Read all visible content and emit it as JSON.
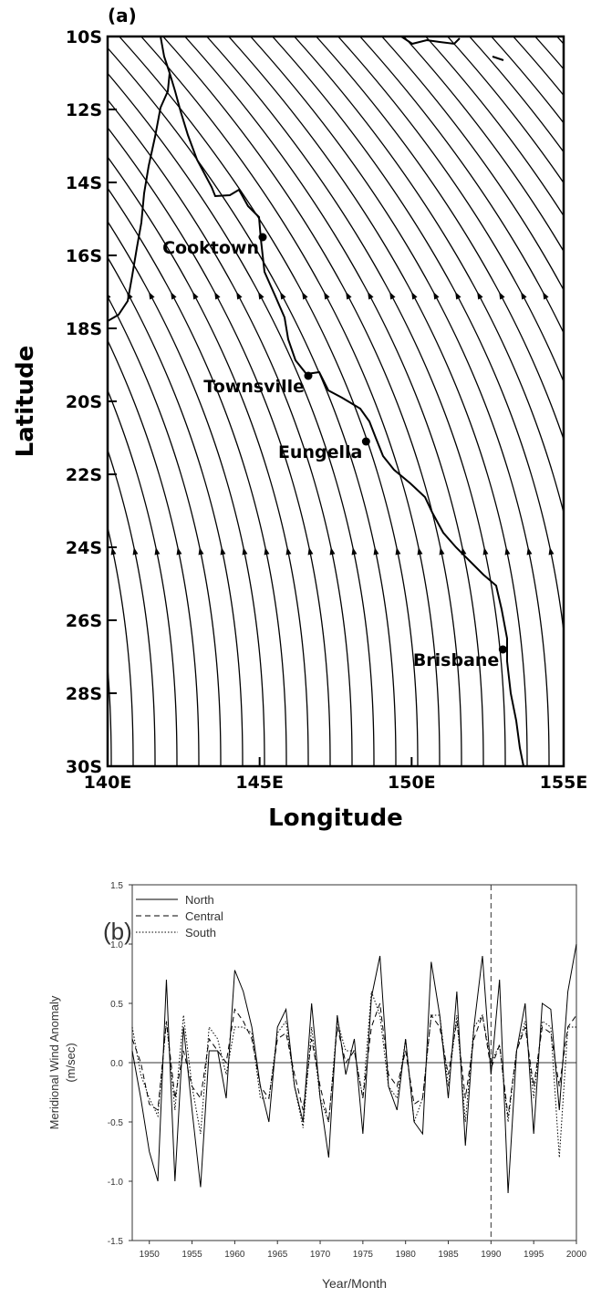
{
  "chart_data": [
    {
      "type": "map",
      "title": "(a)",
      "xlabel": "Longitude",
      "ylabel": "Latitude",
      "xlim": [
        140,
        155
      ],
      "ylim": [
        -30,
        -10
      ],
      "xticks": [
        {
          "value": 140,
          "label": "140E"
        },
        {
          "value": 145,
          "label": "145E"
        },
        {
          "value": 150,
          "label": "150E"
        },
        {
          "value": 155,
          "label": "155E"
        }
      ],
      "yticks": [
        {
          "value": -10,
          "label": "10S"
        },
        {
          "value": -12,
          "label": "12S"
        },
        {
          "value": -14,
          "label": "14S"
        },
        {
          "value": -16,
          "label": "16S"
        },
        {
          "value": -18,
          "label": "18S"
        },
        {
          "value": -20,
          "label": "20S"
        },
        {
          "value": -22,
          "label": "22S"
        },
        {
          "value": -24,
          "label": "24S"
        },
        {
          "value": -26,
          "label": "26S"
        },
        {
          "value": -28,
          "label": "28S"
        },
        {
          "value": -30,
          "label": "30S"
        }
      ],
      "names": [
        "Cooktown",
        "Townsville",
        "Eungella",
        "Brisbane"
      ],
      "x": [
        145.1,
        146.6,
        148.5,
        153.0
      ],
      "y": [
        -15.5,
        -19.3,
        -21.1,
        -26.8
      ],
      "color": "#000000"
    },
    {
      "type": "line",
      "title": "(b)",
      "xlabel": "Year/Month",
      "ylabel": [
        "Meridional Wind Anomaly",
        "(m/sec)"
      ],
      "xlim": [
        1948,
        2000
      ],
      "ylim": [
        -1.5,
        1.5
      ],
      "xticks": [
        1950,
        1955,
        1960,
        1965,
        1970,
        1975,
        1980,
        1985,
        1990,
        1995,
        2000
      ],
      "yticks": [
        1.5,
        {
          "value": 1,
          "label": "1.0"
        },
        0.5,
        {
          "value": 0,
          "label": "0.0"
        },
        -0.5,
        {
          "value": -1,
          "label": "-1.0"
        },
        -1.5
      ],
      "vline": 1990,
      "legend": "upper-left",
      "grid": false,
      "x": [
        1948,
        1949,
        1950,
        1951,
        1952,
        1953,
        1954,
        1955,
        1956,
        1957,
        1958,
        1959,
        1960,
        1961,
        1962,
        1963,
        1964,
        1965,
        1966,
        1967,
        1968,
        1969,
        1970,
        1971,
        1972,
        1973,
        1974,
        1975,
        1976,
        1977,
        1978,
        1979,
        1980,
        1981,
        1982,
        1983,
        1984,
        1985,
        1986,
        1987,
        1988,
        1989,
        1990,
        1991,
        1992,
        1993,
        1994,
        1995,
        1996,
        1997,
        1998,
        1999,
        2000
      ],
      "series": [
        {
          "name": "North",
          "color": "#000000",
          "style": "solid",
          "values": [
            0.1,
            -0.3,
            -0.75,
            -1.0,
            0.7,
            -1.0,
            0.3,
            -0.4,
            -1.05,
            0.1,
            0.1,
            -0.3,
            0.78,
            0.6,
            0.3,
            -0.2,
            -0.5,
            0.3,
            0.45,
            -0.2,
            -0.5,
            0.5,
            -0.3,
            -0.8,
            0.4,
            -0.1,
            0.2,
            -0.6,
            0.55,
            0.9,
            -0.2,
            -0.4,
            0.2,
            -0.5,
            -0.6,
            0.85,
            0.4,
            -0.3,
            0.6,
            -0.7,
            0.3,
            0.9,
            -0.1,
            0.7,
            -1.1,
            0.1,
            0.5,
            -0.6,
            0.5,
            0.45,
            -0.4,
            0.6,
            1.0
          ]
        },
        {
          "name": "Central",
          "color": "#000000",
          "style": "dashed",
          "values": [
            0.2,
            0.0,
            -0.35,
            -0.4,
            0.35,
            -0.3,
            0.1,
            -0.2,
            -0.3,
            0.2,
            0.1,
            0.0,
            0.45,
            0.35,
            0.2,
            -0.2,
            -0.3,
            0.2,
            0.25,
            -0.1,
            -0.4,
            0.2,
            -0.2,
            -0.5,
            0.3,
            0.0,
            0.1,
            -0.3,
            0.3,
            0.5,
            -0.1,
            -0.2,
            0.1,
            -0.35,
            -0.3,
            0.4,
            0.3,
            -0.1,
            0.35,
            -0.3,
            0.2,
            0.4,
            -0.05,
            0.15,
            -0.45,
            0.1,
            0.3,
            -0.2,
            0.3,
            0.25,
            -0.2,
            0.3,
            0.4
          ]
        },
        {
          "name": "South",
          "color": "#000000",
          "style": "dotted",
          "values": [
            0.3,
            -0.1,
            -0.3,
            -0.45,
            0.35,
            -0.4,
            0.4,
            -0.2,
            -0.6,
            0.3,
            0.2,
            -0.1,
            0.3,
            0.3,
            0.25,
            -0.3,
            -0.3,
            0.25,
            0.35,
            -0.2,
            -0.55,
            0.3,
            -0.3,
            -0.5,
            0.35,
            0.1,
            0.1,
            -0.3,
            0.6,
            0.4,
            -0.2,
            -0.3,
            0.2,
            -0.5,
            -0.3,
            0.4,
            0.4,
            -0.2,
            0.4,
            -0.5,
            0.3,
            0.4,
            0.0,
            0.15,
            -0.5,
            0.1,
            0.35,
            -0.3,
            0.35,
            0.3,
            -0.8,
            0.3,
            0.3
          ]
        }
      ]
    }
  ]
}
